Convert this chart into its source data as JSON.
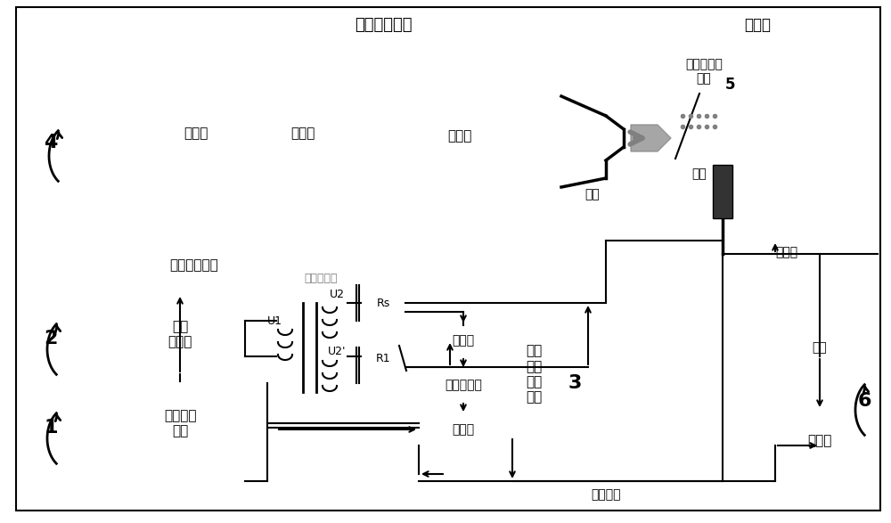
{
  "title": "高焓激波风洞",
  "bg_color": "#ffffff",
  "label_4": "4",
  "label_2": "2",
  "label_1": "1",
  "label_3": "3",
  "label_5": "5",
  "label_6": "6",
  "text_wind_tunnel": "高焓激波风洞",
  "text_test_cabin": "试验舱",
  "text_unit4_label": "高压功放单元",
  "text_isolator": "隔离变压器",
  "text_power_amp": "功率\n放大器",
  "text_signal_mod": "信号调制\n单元",
  "text_subtractor": "减法器",
  "text_feature_filter": "特征滤波器",
  "text_computer": "计算机",
  "text_data_acq": "数据\n采集\n处理\n单元",
  "text_probe_model": "探针和模型\n单元",
  "text_probe_label": "探针",
  "text_nozzle": "喷管",
  "text_ref_line": "参考线",
  "text_trigger": "触发",
  "text_delayed": "延时采集",
  "text_trigger_box": "触发器",
  "text_unload": "卸爆段",
  "text_explode": "爆轰段",
  "text_drive": "驱动段",
  "text_U1": "U1",
  "text_U2": "U2",
  "text_U2p": "U2'",
  "text_Rs": "Rs",
  "text_R1": "R1"
}
